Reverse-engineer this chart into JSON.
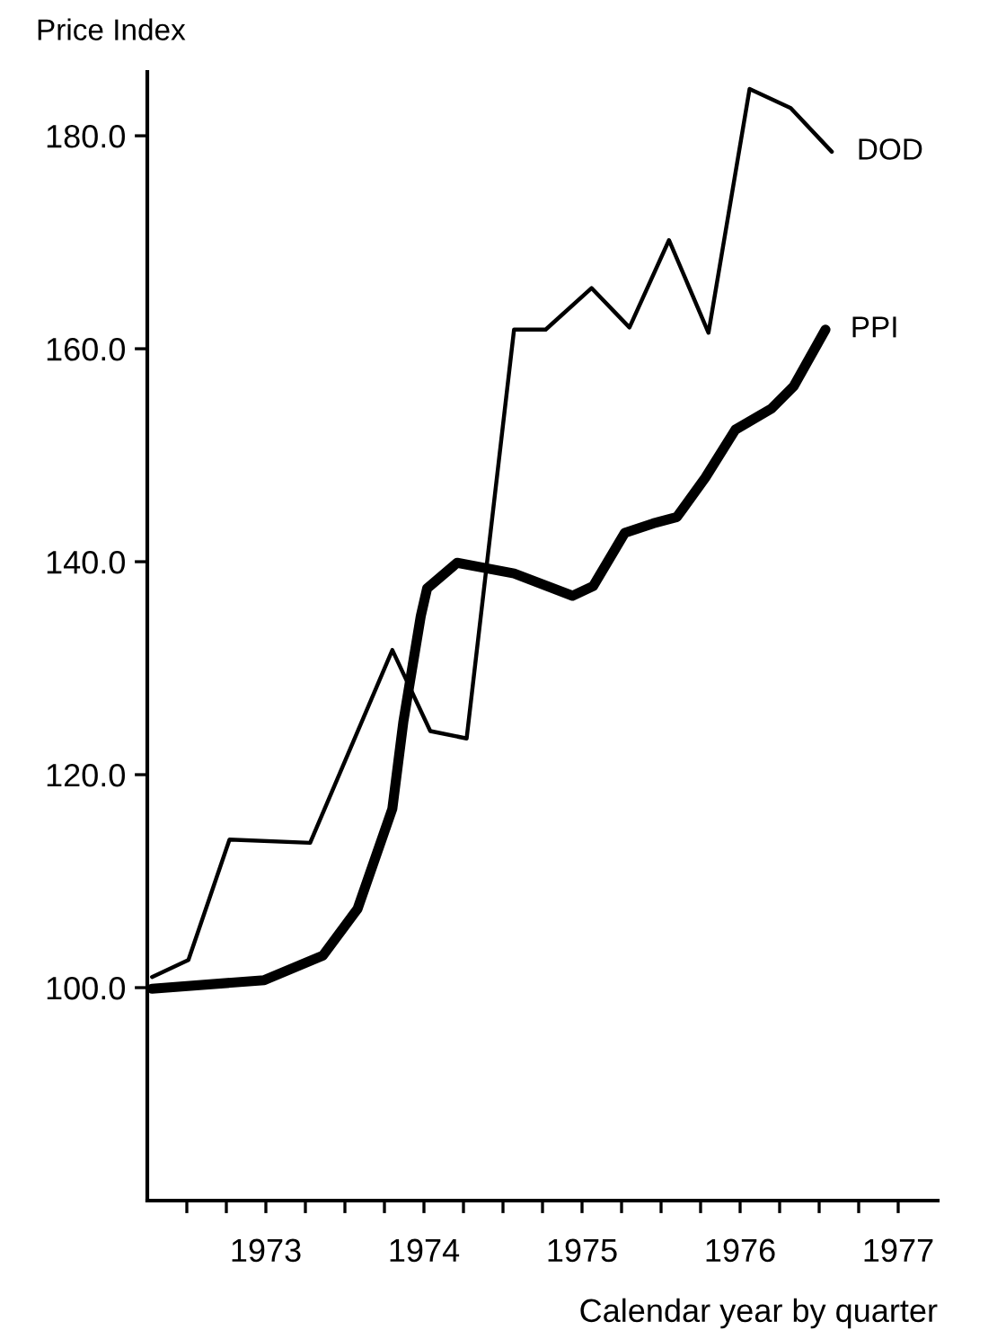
{
  "chart_data": {
    "type": "line",
    "xlabel": "Calendar year by quarter",
    "ylabel": "Price Index",
    "xlim": [
      1972.25,
      1977.25
    ],
    "ylim": [
      80,
      186
    ],
    "yticks": [
      {
        "value": 100,
        "label": "100.0"
      },
      {
        "value": 120,
        "label": "120.0"
      },
      {
        "value": 140,
        "label": "140.0"
      },
      {
        "value": 160,
        "label": "160.0"
      },
      {
        "value": 180,
        "label": "180.0"
      }
    ],
    "xticks": [
      {
        "value": 1972.5,
        "label": null
      },
      {
        "value": 1972.75,
        "label": null
      },
      1973,
      {
        "value": 1973.25,
        "label": null
      },
      {
        "value": 1973.5,
        "label": null
      },
      {
        "value": 1973.75,
        "label": null
      },
      1974,
      {
        "value": 1974.25,
        "label": null
      },
      {
        "value": 1974.5,
        "label": null
      },
      {
        "value": 1974.75,
        "label": null
      },
      1975,
      {
        "value": 1975.25,
        "label": null
      },
      {
        "value": 1975.5,
        "label": null
      },
      {
        "value": 1975.75,
        "label": null
      },
      1976,
      {
        "value": 1976.25,
        "label": null
      },
      {
        "value": 1976.5,
        "label": null
      },
      {
        "value": 1976.75,
        "label": null
      },
      1977
    ],
    "grid": false,
    "legend": false,
    "marker": "none",
    "line_style": "solid",
    "series": [
      {
        "name": "DOD",
        "color": "#000000",
        "x": [
          1972.28,
          1972.51,
          1972.77,
          1973.28,
          1973.8,
          1974.04,
          1974.27,
          1974.57,
          1974.77,
          1975.06,
          1975.3,
          1975.55,
          1975.8,
          1976.06,
          1976.32,
          1976.58
        ],
        "values": [
          101,
          102.6,
          113.9,
          113.6,
          131.7,
          124.1,
          123.4,
          161.8,
          161.8,
          165.7,
          162,
          170.2,
          161.5,
          184.4,
          182.6,
          178.5
        ]
      },
      {
        "name": "PPI",
        "color": "#000000",
        "x": [
          1972.28,
          1972.99,
          1973.36,
          1973.58,
          1973.8,
          1973.87,
          1973.98,
          1974.02,
          1974.21,
          1974.57,
          1974.94,
          1975.07,
          1975.27,
          1975.45,
          1975.6,
          1975.78,
          1975.97,
          1976.2,
          1976.34,
          1976.54
        ],
        "values": [
          99.9,
          100.7,
          103,
          107.4,
          116.8,
          125,
          134.9,
          137.5,
          139.9,
          138.9,
          136.8,
          137.7,
          142.7,
          143.6,
          144.2,
          147.9,
          152.4,
          154.4,
          156.5,
          161.8
        ]
      }
    ]
  }
}
